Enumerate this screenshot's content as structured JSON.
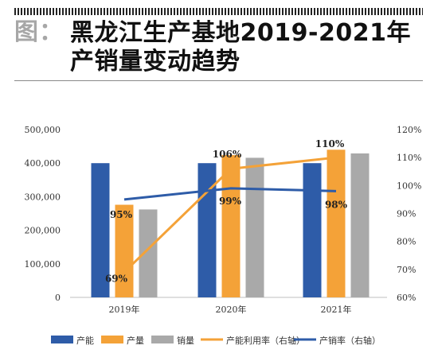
{
  "header": {
    "prefix": "图：",
    "title": "黑龙江生产基地2019-2021年产销量变动趋势"
  },
  "chart_data": {
    "type": "bar",
    "categories": [
      "2019年",
      "2020年",
      "2021年"
    ],
    "series": [
      {
        "name": "产能",
        "kind": "bar",
        "axis": "left",
        "color": "#2e5ca8",
        "values": [
          400000,
          400000,
          400000
        ]
      },
      {
        "name": "产量",
        "kind": "bar",
        "axis": "left",
        "color": "#f4a238",
        "values": [
          276000,
          424000,
          440000
        ]
      },
      {
        "name": "销量",
        "kind": "bar",
        "axis": "left",
        "color": "#a9a9a9",
        "values": [
          262000,
          416000,
          429000
        ]
      },
      {
        "name": "产能利用率（右轴）",
        "kind": "line",
        "axis": "right",
        "color": "#f4a238",
        "values": [
          69,
          106,
          110
        ],
        "labels": [
          "69%",
          "106%",
          "110%"
        ]
      },
      {
        "name": "产销率（右轴）",
        "kind": "line",
        "axis": "right",
        "color": "#2e5ca8",
        "values": [
          95,
          99,
          98
        ],
        "labels": [
          "95%",
          "99%",
          "98%"
        ]
      }
    ],
    "y_left": {
      "range": [
        0,
        500000
      ],
      "ticks": [
        "0",
        "100,000",
        "200,000",
        "300,000",
        "400,000",
        "500,000"
      ]
    },
    "y_right": {
      "range": [
        60,
        120
      ],
      "ticks": [
        "60%",
        "70%",
        "80%",
        "90%",
        "100%",
        "110%",
        "120%"
      ]
    },
    "grid": false,
    "legend": "bottom"
  }
}
